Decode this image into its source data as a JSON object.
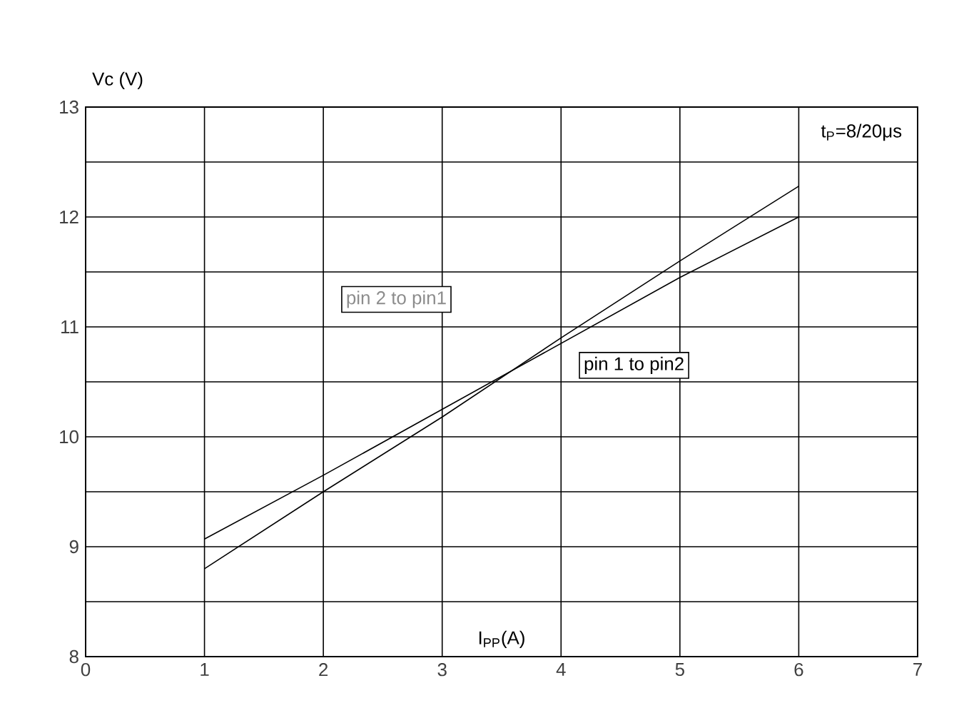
{
  "chart_data": {
    "type": "line",
    "title": "t$_{P}$=8/20μs",
    "xlabel": "I$_{PP}$(A)",
    "ylabel": "Vc (V)",
    "annotations": [
      "pin 2 to pin1",
      "pin 1 to pin2"
    ],
    "x": [
      1,
      2,
      3,
      4,
      5,
      6
    ],
    "series": [
      {
        "color": "#000000",
        "values": [
          9.07,
          9.65,
          10.25,
          10.85,
          11.45,
          12.0
        ]
      },
      {
        "color": "#000000",
        "values": [
          8.8,
          9.5,
          10.18,
          10.9,
          11.6,
          12.28
        ]
      }
    ],
    "xlim": [
      0,
      7
    ],
    "ylim": [
      8,
      13
    ],
    "xticks": [
      0,
      1,
      2,
      3,
      4,
      5,
      6,
      7
    ],
    "yticks": [
      8,
      {
        "value": 8.5,
        "label": null
      },
      9,
      {
        "value": 9.5,
        "label": null
      },
      10,
      {
        "value": 10.5,
        "label": null
      },
      11,
      {
        "value": 11.5,
        "label": null
      },
      12,
      {
        "value": 12.5,
        "label": null
      },
      13
    ],
    "grid": true,
    "marker": "none",
    "line_style": "solid"
  }
}
